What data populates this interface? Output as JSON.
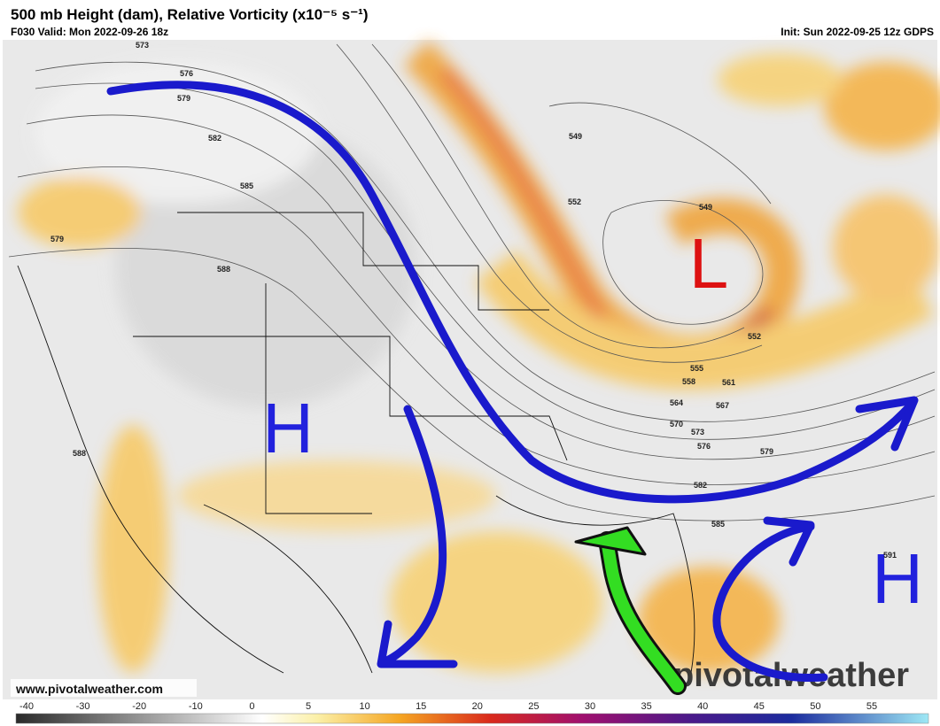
{
  "header": {
    "title": "500 mb Height (dam), Relative Vorticity (x10⁻⁵ s⁻¹)",
    "valid": "F030 Valid: Mon 2022-09-26 18z",
    "init": "Init: Sun 2022-09-25 12z GDPS"
  },
  "contour_labels": [
    573,
    576,
    579,
    582,
    585,
    588,
    579,
    588,
    549,
    552,
    549,
    552,
    555,
    558,
    561,
    564,
    567,
    570,
    573,
    576,
    579,
    582,
    585,
    591
  ],
  "annotations": {
    "high_west": "H",
    "high_east": "H",
    "low": "L"
  },
  "watermark": {
    "url": "www.pivotalweather.com",
    "logo": "pivotalweather"
  },
  "colorbar": {
    "ticks": [
      -40,
      -30,
      -20,
      -10,
      0,
      5,
      10,
      15,
      20,
      25,
      30,
      35,
      40,
      45,
      50,
      55
    ]
  }
}
